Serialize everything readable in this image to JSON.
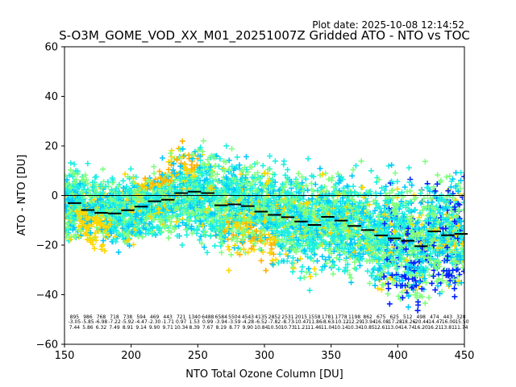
{
  "chart_data": {
    "type": "scatter",
    "plot_date": "Plot date: 2025-10-08 12:14:52",
    "title": "S-O3M_GOME_VOD_XX_M01_20251007Z Gridded ATO - NTO vs TOC",
    "xlabel": "NTO Total Ozone Column [DU]",
    "ylabel": "ATO - NTO [DU]",
    "xlim": [
      150,
      450
    ],
    "ylim": [
      -60,
      60
    ],
    "xticks": [
      150,
      200,
      250,
      300,
      350,
      400,
      450
    ],
    "yticks": [
      -60,
      -40,
      -20,
      0,
      20,
      40,
      60
    ],
    "xtick_labels": [
      "150",
      "200",
      "250",
      "300",
      "350",
      "400",
      "450"
    ],
    "ytick_labels": [
      "−60",
      "−40",
      "−20",
      "0",
      "20",
      "40",
      "60"
    ],
    "zero_line": 0,
    "scatter_colors": [
      "#00c8ff",
      "#1ef0e0",
      "#80ff80",
      "#ffd700",
      "#ffb000",
      "#0020ff"
    ],
    "bin_centers": [
      157.5,
      167.5,
      177.5,
      187.5,
      197.5,
      207.5,
      217.5,
      227.5,
      237.5,
      247.5,
      257.5,
      267.5,
      277.5,
      287.5,
      297.5,
      307.5,
      317.5,
      327.5,
      337.5,
      347.5,
      357.5,
      367.5,
      377.5,
      387.5,
      397.5,
      407.5,
      417.5,
      427.5,
      437.5,
      447.5
    ],
    "bin_means": [
      -3.05,
      -5.85,
      -6.98,
      -7.22,
      -5.92,
      -4.47,
      -2.3,
      -1.71,
      0.97,
      1.53,
      0.99,
      -3.94,
      -3.59,
      -4.28,
      -6.52,
      -7.82,
      -8.73,
      -10.47,
      -11.86,
      -8.63,
      -10.12,
      -12.29,
      -13.94,
      -16.08,
      -17.28,
      -18.26,
      -20.44,
      -14.47,
      -16.0,
      -15.5
    ],
    "bin_counts": [
      "895",
      "986",
      "768",
      "718",
      "738",
      "594",
      "469",
      "443",
      "721",
      "1340",
      "6488",
      "6584",
      "5504",
      "4543",
      "4135",
      "2852",
      "2531",
      "2015",
      "1558",
      "1781",
      "1778",
      "1198",
      "862",
      "675",
      "625",
      "512",
      "498",
      "474",
      "443",
      "328"
    ],
    "bin_mean_labels": [
      "-3.05",
      "-5.85",
      "-6.98",
      "-7.22",
      "-5.92",
      "-4.47",
      "-2.30",
      "-1.71",
      "0.97",
      "1.53",
      "0.99",
      "-3.94",
      "-3.59",
      "-4.28",
      "-6.52",
      "-7.82",
      "-8.73",
      "-10.47",
      "-11.86",
      "-8.63",
      "-10.12",
      "-12.29",
      "-13.94",
      "-16.08",
      "-17.28",
      "-18.26",
      "-20.44",
      "-14.47",
      "-16.00",
      "-15.50"
    ],
    "bin_std_labels": [
      "7.44",
      "5.86",
      "6.32",
      "7.49",
      "8.91",
      "9.14",
      "9.90",
      "9.71",
      "10.34",
      "8.39",
      "7.67",
      "8.19",
      "8.77",
      "9.90",
      "10.84",
      "10.50",
      "10.73",
      "11.21",
      "11.46",
      "11.04",
      "10.14",
      "10.34",
      "10.85",
      "12.61",
      "13.04",
      "14.74",
      "16.20",
      "16.21",
      "13.81",
      "11.74"
    ]
  }
}
